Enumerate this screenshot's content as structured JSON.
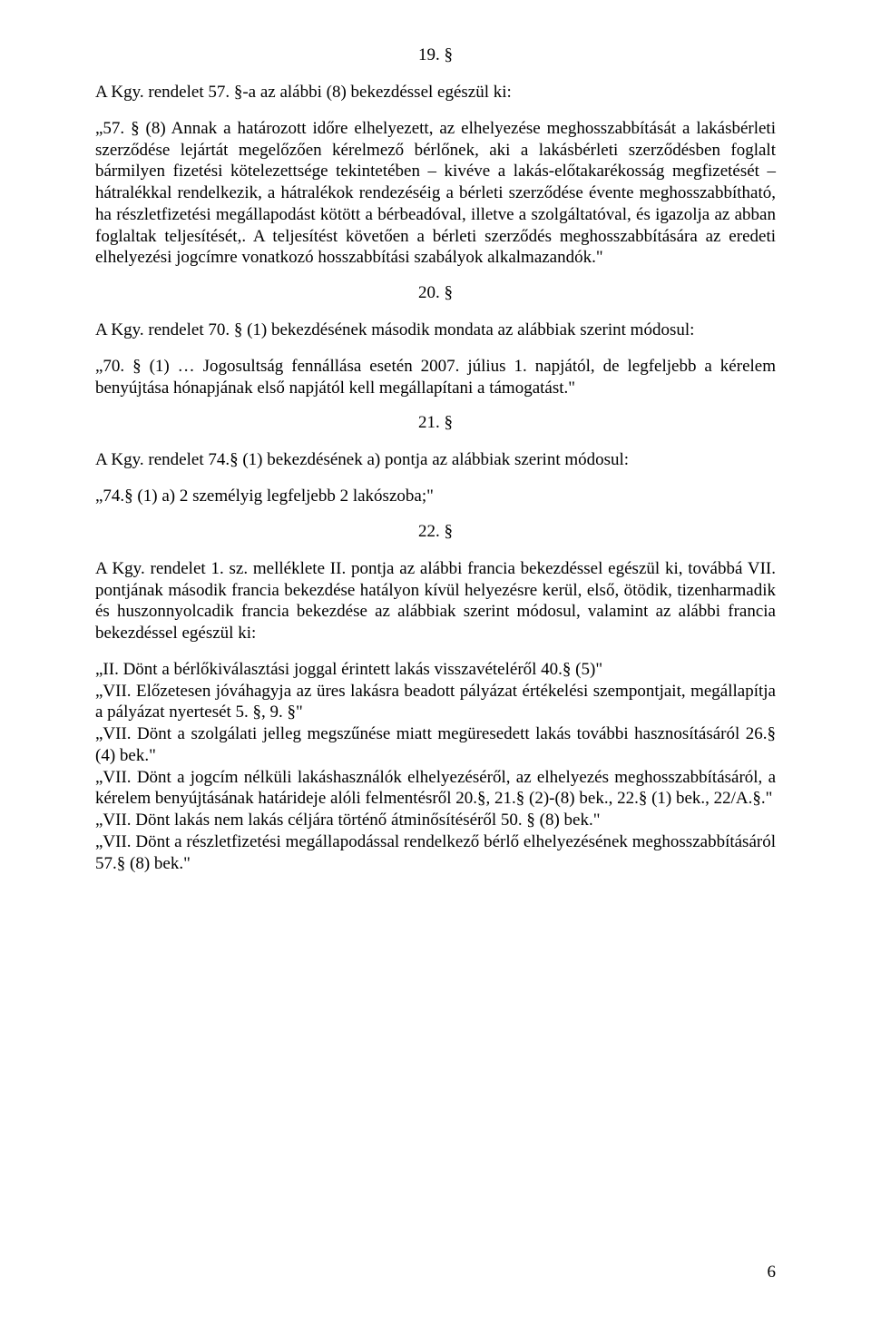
{
  "typography": {
    "font_family": "Times New Roman",
    "base_fontsize_pt": 14,
    "text_color": "#000000",
    "background_color": "#ffffff",
    "line_height": 1.25
  },
  "s19": {
    "num": "19. §",
    "intro": "A Kgy. rendelet 57. §-a az alábbi (8) bekezdéssel egészül ki:",
    "body": "„57. § (8) Annak a határozott időre elhelyezett, az elhelyezése meghosszabbítását a lakásbérleti szerződése lejártát megelőzően kérelmező bérlőnek, aki a lakásbérleti szerződésben foglalt bármilyen fizetési kötelezettsége tekintetében – kivéve a lakás-előtakarékosság megfizetését – hátralékkal rendelkezik, a hátralékok rendezéséig a bérleti szerződése évente meghosszabbítható, ha részletfizetési megállapodást kötött a bérbeadóval, illetve a szolgáltatóval, és igazolja az abban foglaltak teljesítését,. A teljesítést követően a bérleti szerződés meghosszabbítására az eredeti elhelyezési jogcímre vonatkozó hosszabbítási szabályok alkalmazandók.\""
  },
  "s20": {
    "num": "20. §",
    "intro": "A Kgy. rendelet 70. § (1) bekezdésének második mondata az alábbiak szerint módosul:",
    "body": "„70. § (1) … Jogosultság fennállása esetén 2007. július 1. napjától, de legfeljebb a kérelem benyújtása hónapjának első napjától kell megállapítani a támogatást.\""
  },
  "s21": {
    "num": "21. §",
    "intro": "A Kgy. rendelet 74.§ (1) bekezdésének a) pontja az alábbiak szerint módosul:",
    "body": "„74.§ (1) a) 2 személyig legfeljebb 2 lakószoba;\""
  },
  "s22": {
    "num": "22. §",
    "intro": "A Kgy. rendelet 1. sz. melléklete II. pontja az alábbi francia bekezdéssel egészül ki, továbbá VII. pontjának második francia bekezdése hatályon kívül helyezésre kerül, első, ötödik, tizenharmadik és huszonnyolcadik francia bekezdése az alábbiak szerint módosul, valamint az alábbi francia bekezdéssel egészül ki:",
    "p1": "„II. Dönt a bérlőkiválasztási joggal érintett lakás visszavételéről 40.§ (5)\"",
    "p2": "„VII. Előzetesen jóváhagyja az üres lakásra beadott pályázat értékelési szempontjait, megállapítja a pályázat nyertesét 5. §, 9. §\"",
    "p3": "„VII. Dönt a szolgálati jelleg megszűnése miatt megüresedett lakás további hasznosításáról 26.§ (4) bek.\"",
    "p4": "„VII. Dönt a jogcím nélküli lakáshasználók elhelyezéséről, az elhelyezés meghosszabbításáról, a kérelem benyújtásának határideje alóli felmentésről 20.§, 21.§ (2)-(8) bek., 22.§ (1) bek., 22/A.§.\"",
    "p5": "„VII. Dönt lakás nem lakás céljára történő átminősítéséről 50. § (8) bek.\"",
    "p6": "„VII. Dönt a részletfizetési megállapodással rendelkező bérlő elhelyezésének meghosszabbításáról 57.§ (8) bek.\""
  },
  "page_number": "6"
}
